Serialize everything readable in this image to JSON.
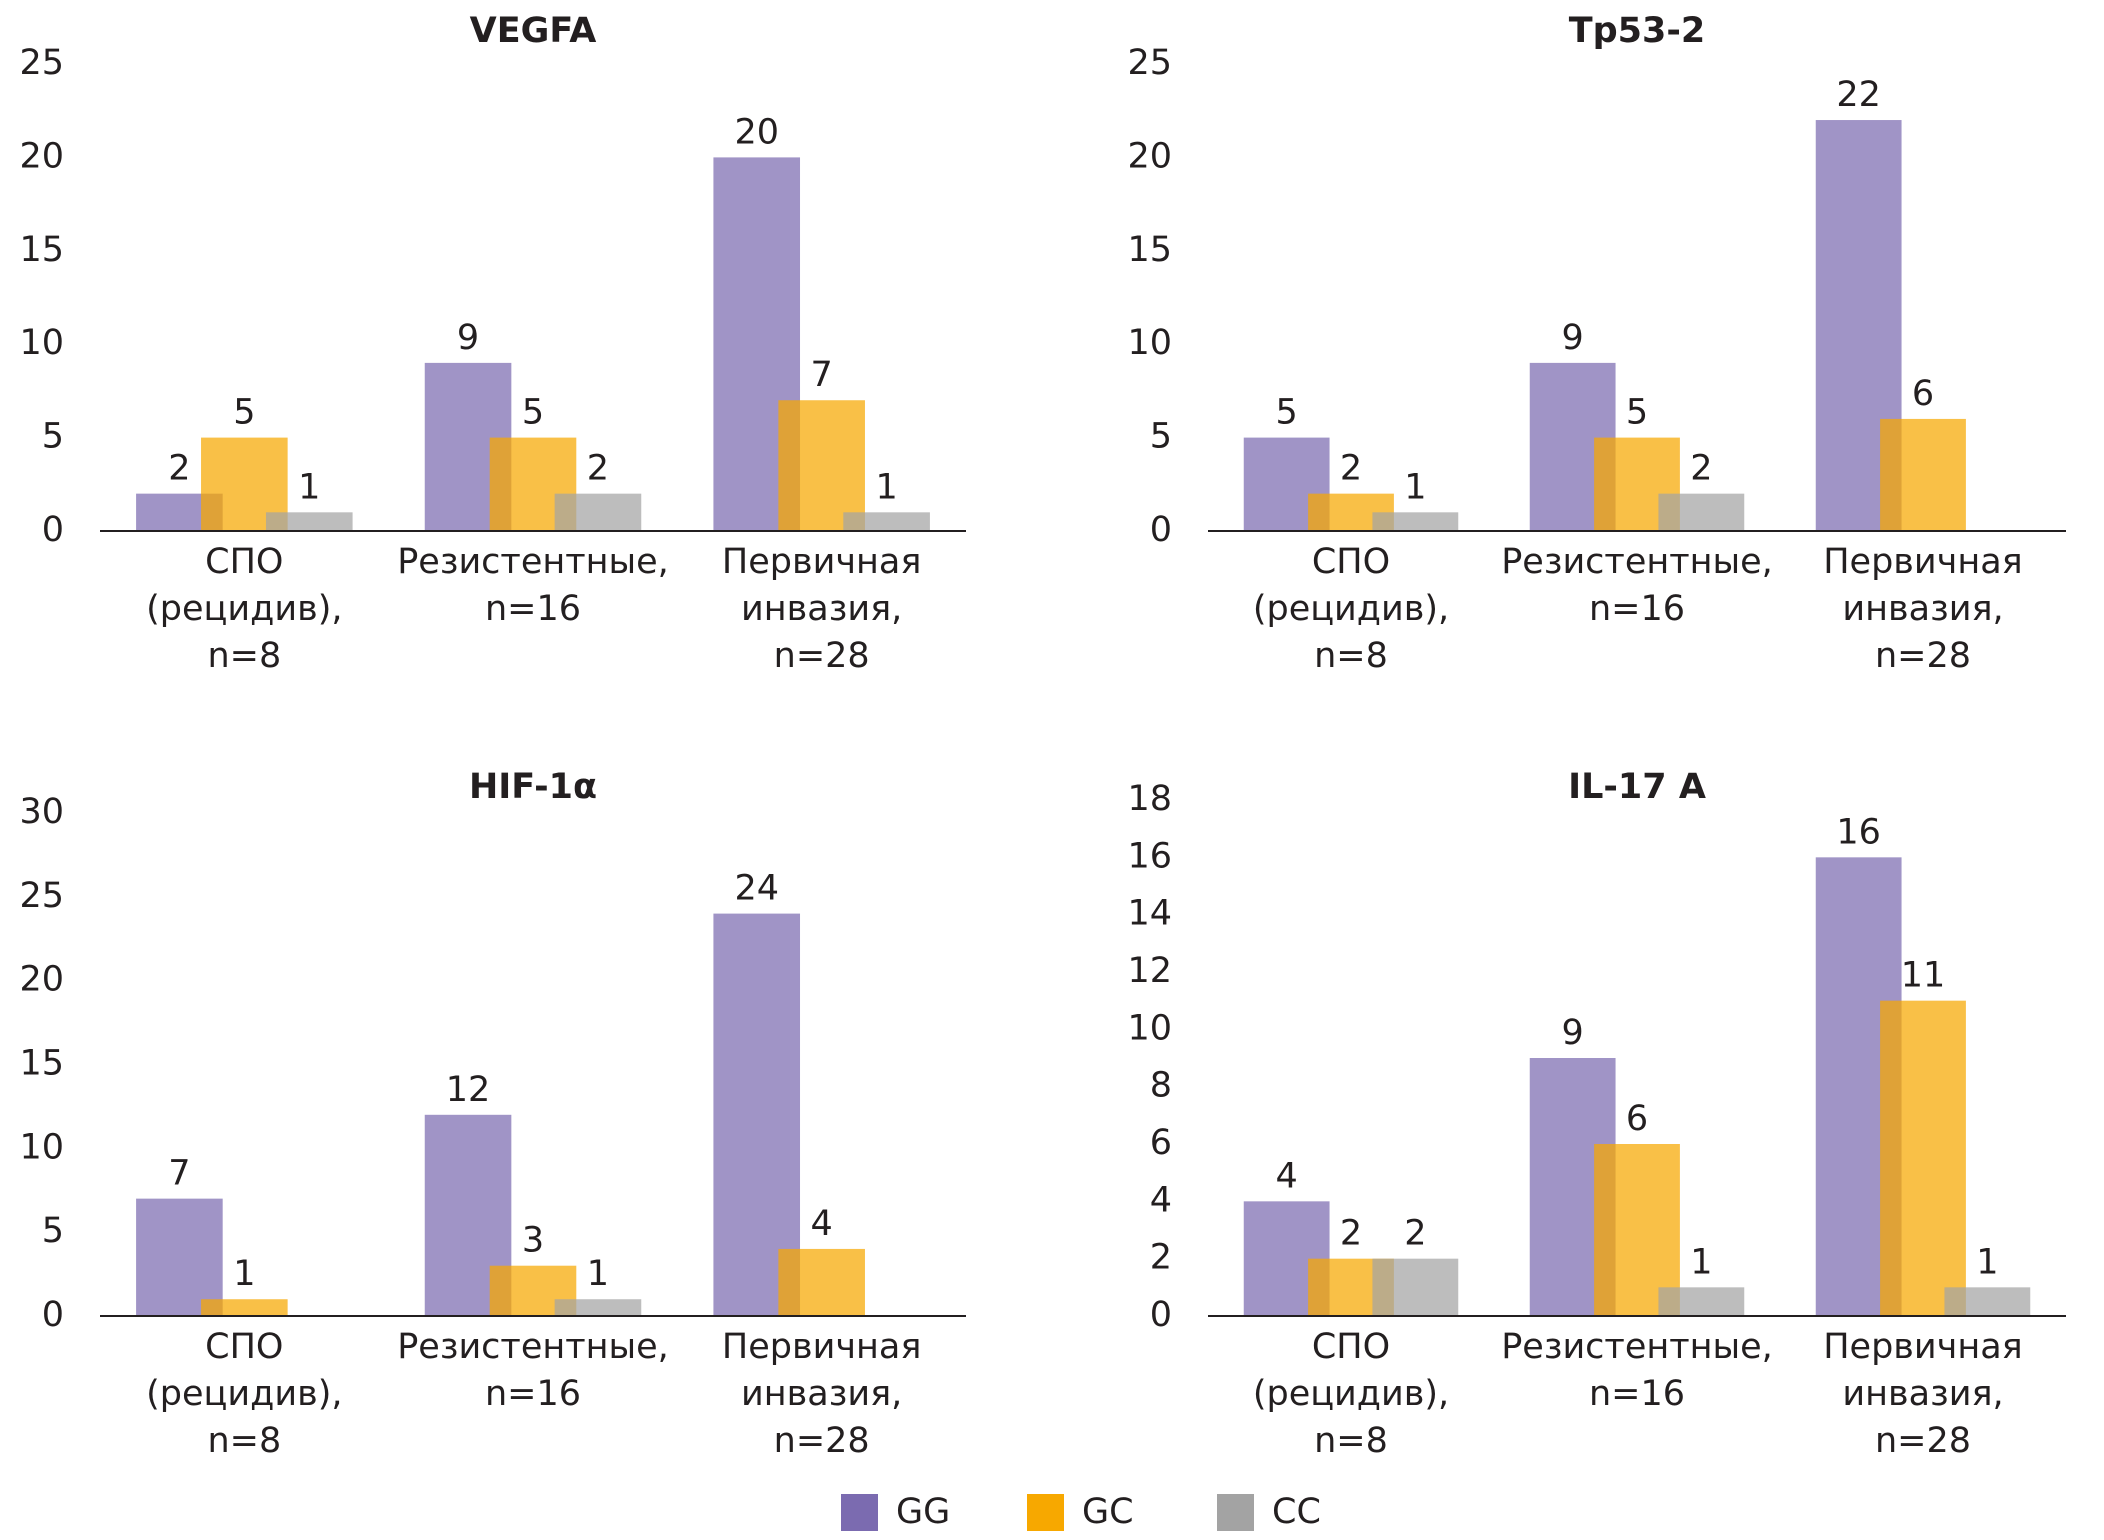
{
  "chart_data": [
    {
      "type": "bar",
      "title": "VEGFA",
      "categories": [
        [
          "СПО",
          "(рецидив),",
          "n=8"
        ],
        [
          "Резистентные,",
          "n=16"
        ],
        [
          "Первичная",
          "инвазия,",
          "n=28"
        ]
      ],
      "series": [
        {
          "name": "GG",
          "color": "#7b6bb0",
          "values": [
            2,
            9,
            20
          ]
        },
        {
          "name": "GC",
          "color": "#f7a800",
          "values": [
            5,
            5,
            7
          ]
        },
        {
          "name": "CC",
          "color": "#a3a3a3",
          "values": [
            1,
            2,
            1
          ]
        }
      ],
      "ylim": [
        0,
        25
      ],
      "yticks": [
        0,
        5,
        10,
        15,
        20,
        25
      ]
    },
    {
      "type": "bar",
      "title": "Tp53-2",
      "categories": [
        [
          "СПО",
          "(рецидив),",
          "n=8"
        ],
        [
          "Резистентные,",
          "n=16"
        ],
        [
          "Первичная",
          "инвазия,",
          "n=28"
        ]
      ],
      "series": [
        {
          "name": "GG",
          "color": "#7b6bb0",
          "values": [
            5,
            9,
            22
          ]
        },
        {
          "name": "GC",
          "color": "#f7a800",
          "values": [
            2,
            5,
            6
          ]
        },
        {
          "name": "CC",
          "color": "#a3a3a3",
          "values": [
            1,
            2,
            null
          ]
        }
      ],
      "ylim": [
        0,
        25
      ],
      "yticks": [
        0,
        5,
        10,
        15,
        20,
        25
      ]
    },
    {
      "type": "bar",
      "title": "HIF-1α",
      "categories": [
        [
          "СПО",
          "(рецидив),",
          "n=8"
        ],
        [
          "Резистентные,",
          "n=16"
        ],
        [
          "Первичная",
          "инвазия,",
          "n=28"
        ]
      ],
      "series": [
        {
          "name": "GG",
          "color": "#7b6bb0",
          "values": [
            7,
            12,
            24
          ]
        },
        {
          "name": "GC",
          "color": "#f7a800",
          "values": [
            1,
            3,
            4
          ]
        },
        {
          "name": "CC",
          "color": "#a3a3a3",
          "values": [
            null,
            1,
            null
          ]
        }
      ],
      "ylim": [
        0,
        30
      ],
      "yticks": [
        0,
        5,
        10,
        15,
        20,
        25,
        30
      ]
    },
    {
      "type": "bar",
      "title": "IL-17 A",
      "categories": [
        [
          "СПО",
          "(рецидив),",
          "n=8"
        ],
        [
          "Резистентные,",
          "n=16"
        ],
        [
          "Первичная",
          "инвазия,",
          "n=28"
        ]
      ],
      "series": [
        {
          "name": "GG",
          "color": "#7b6bb0",
          "values": [
            4,
            9,
            16
          ]
        },
        {
          "name": "GC",
          "color": "#f7a800",
          "values": [
            2,
            6,
            11
          ]
        },
        {
          "name": "CC",
          "color": "#a3a3a3",
          "values": [
            2,
            1,
            1
          ]
        }
      ],
      "ylim": [
        0,
        18
      ],
      "yticks": [
        0,
        2,
        4,
        6,
        8,
        10,
        12,
        14,
        16,
        18
      ]
    }
  ]
}
